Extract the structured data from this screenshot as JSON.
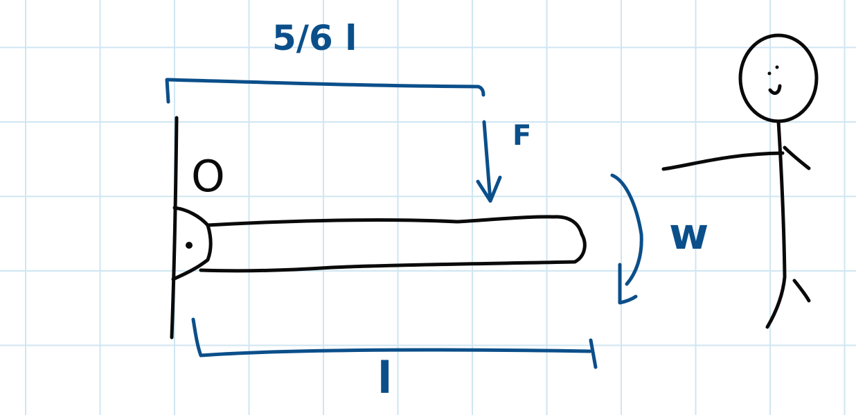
{
  "diagram": {
    "labels": {
      "top_length": "5/6 l",
      "force": "F",
      "pivot": "O",
      "angular_velocity": "w",
      "bottom_length": "l"
    },
    "colors": {
      "grid": "#cfe6f2",
      "ink_black": "#0a0a0a",
      "ink_blue": "#0b4f8a",
      "background": "#ffffff"
    },
    "icons": [
      "stick-figure-person",
      "force-arrow",
      "rotation-arrow",
      "dimension-bracket"
    ]
  }
}
